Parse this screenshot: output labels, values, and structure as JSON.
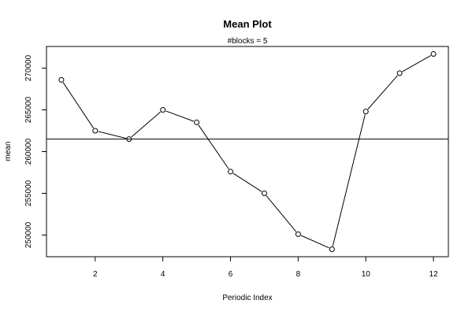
{
  "chart_data": {
    "type": "line",
    "title": "Mean Plot",
    "subtitle": "#blocks =  5",
    "xlabel": "Periodic Index",
    "ylabel": "mean",
    "x": [
      1,
      2,
      3,
      4,
      5,
      6,
      7,
      8,
      9,
      10,
      11,
      12
    ],
    "y": [
      268600,
      262500,
      261500,
      265000,
      263500,
      257600,
      255000,
      250100,
      248300,
      264800,
      269400,
      271700
    ],
    "xlim": [
      0.56,
      12.44
    ],
    "ylim": [
      247400,
      272600
    ],
    "xticks": [
      2,
      4,
      6,
      8,
      10,
      12
    ],
    "yticks": [
      250000,
      255000,
      260000,
      265000,
      270000
    ],
    "hline": 261500,
    "line_color": "#000000",
    "hline_color": "#000000",
    "grid": false,
    "legend": false
  }
}
